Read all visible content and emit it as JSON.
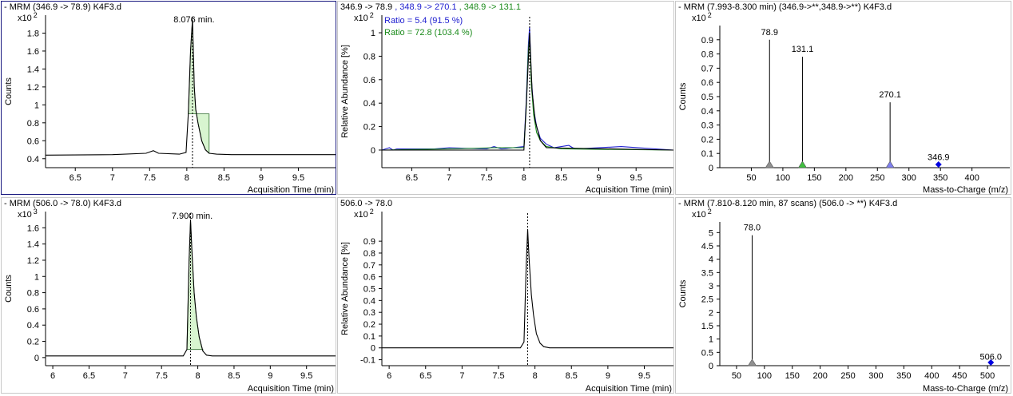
{
  "colors": {
    "blue": "#2020d0",
    "green": "#1a8a1a",
    "peak_fill": "#d8f5d0",
    "peak_edge": "#2a6a2a",
    "grey_marker": "#909090",
    "green_marker": "#40c040",
    "blue_marker": "#7f7ff0",
    "diamond": "#0000e0"
  },
  "panels": {
    "p1": {
      "title": "- MRM (346.9 -> 78.9) K4F3.d",
      "ylabel": "Counts",
      "multiplier": "x10 2",
      "xlabel": "Acquisition Time (min)",
      "peak_label": "8.076 min."
    },
    "p2": {
      "title_parts": [
        "346.9 -> 78.9",
        " , 348.9 -> 270.1",
        " , 348.9 -> 131.1"
      ],
      "ylabel": "Relative Abundance [%]",
      "multiplier": "x10 2",
      "xlabel": "Acquisition Time (min)",
      "ratio1": "Ratio = 5.4 (91.5 %)",
      "ratio2": "Ratio = 72.8 (103.4 %)"
    },
    "p3": {
      "title": "- MRM (7.993-8.300 min) (346.9->**,348.9->**) K4F3.d",
      "ylabel": "Counts",
      "multiplier": "x10 2",
      "xlabel": "Mass-to-Charge (m/z)"
    },
    "p4": {
      "title": "- MRM (506.0 -> 78.0) K4F3.d",
      "ylabel": "Counts",
      "multiplier": "x10 3",
      "xlabel": "Acquisition Time (min)",
      "peak_label": "7.900 min."
    },
    "p5": {
      "title": "506.0 -> 78.0",
      "ylabel": "Relative Abundance [%]",
      "multiplier": "x10 2",
      "xlabel": "Acquisition Time (min)"
    },
    "p6": {
      "title": "- MRM (7.810-8.120 min, 87 scans) (506.0 -> **) K4F3.d",
      "ylabel": "Counts",
      "multiplier": "x10 2",
      "xlabel": "Mass-to-Charge (m/z)"
    }
  },
  "chart_data": [
    {
      "type": "line",
      "panel": "p1",
      "xlim": [
        6.1,
        10.0
      ],
      "ylim": [
        0.3,
        2.0
      ],
      "xticks": [
        "6.5",
        "7",
        "7.5",
        "8",
        "8.5",
        "9",
        "9.5"
      ],
      "yticks": [
        "0.4",
        "0.6",
        "0.8",
        "1",
        "1.2",
        "1.4",
        "1.6",
        "1.8"
      ],
      "peak_time": 8.076,
      "integrated_range": [
        8.0,
        8.3
      ],
      "series": [
        {
          "x": [
            6.1,
            7.0,
            7.45,
            7.55,
            7.62,
            7.9,
            7.99,
            8.02,
            8.05,
            8.076,
            8.1,
            8.12,
            8.15,
            8.2,
            8.25,
            8.3,
            8.4,
            8.6,
            9.0,
            10.0
          ],
          "y": [
            0.44,
            0.445,
            0.46,
            0.49,
            0.46,
            0.45,
            0.47,
            0.9,
            1.6,
            1.95,
            1.2,
            0.95,
            0.8,
            0.6,
            0.5,
            0.46,
            0.45,
            0.445,
            0.445,
            0.445
          ]
        }
      ]
    },
    {
      "type": "line",
      "panel": "p2",
      "xlim": [
        6.1,
        10.0
      ],
      "ylim": [
        -0.15,
        1.15
      ],
      "xticks": [
        "6.5",
        "7",
        "7.5",
        "8",
        "8.5",
        "9",
        "9.5"
      ],
      "yticks": [
        "0",
        "0.2",
        "0.4",
        "0.6",
        "0.8",
        "1"
      ],
      "peak_time": 8.076,
      "series": [
        {
          "color": "blue",
          "x": [
            6.1,
            6.2,
            6.25,
            6.3,
            6.8,
            7.0,
            7.5,
            7.6,
            7.7,
            8.0,
            8.03,
            8.06,
            8.076,
            8.1,
            8.13,
            8.17,
            8.22,
            8.3,
            8.4,
            8.6,
            8.65,
            8.7,
            9.3,
            10.0
          ],
          "y": [
            0.0,
            0.02,
            0.0,
            0.01,
            0.01,
            0.02,
            0.01,
            0.03,
            0.01,
            0.03,
            0.4,
            0.9,
            1.05,
            0.6,
            0.35,
            0.2,
            0.1,
            0.05,
            0.02,
            0.04,
            0.02,
            0.01,
            0.03,
            0.0
          ]
        },
        {
          "color": "green",
          "x": [
            6.1,
            7.0,
            7.6,
            8.0,
            8.03,
            8.06,
            8.076,
            8.1,
            8.13,
            8.17,
            8.22,
            8.3,
            8.5,
            10.0
          ],
          "y": [
            0.0,
            0.01,
            0.02,
            0.02,
            0.35,
            0.85,
            0.98,
            0.55,
            0.3,
            0.15,
            0.08,
            0.03,
            0.01,
            0.0
          ]
        },
        {
          "color": "black",
          "x": [
            6.1,
            8.0,
            8.04,
            8.076,
            8.11,
            8.15,
            8.22,
            8.3,
            10.0
          ],
          "y": [
            0.0,
            0.0,
            0.5,
            1.0,
            0.5,
            0.25,
            0.08,
            0.02,
            0.0
          ]
        }
      ]
    },
    {
      "type": "bar",
      "panel": "p3",
      "xlim": [
        0,
        460
      ],
      "ylim": [
        0,
        1.0
      ],
      "xticks": [
        "50",
        "100",
        "150",
        "200",
        "250",
        "300",
        "350",
        "400"
      ],
      "yticks": [
        "0",
        "0.1",
        "0.2",
        "0.3",
        "0.4",
        "0.5",
        "0.6",
        "0.7",
        "0.8",
        "0.9"
      ],
      "peaks": [
        {
          "mz": 78.9,
          "value": 0.9,
          "label": "78.9",
          "marker": "grey"
        },
        {
          "mz": 131.1,
          "value": 0.78,
          "label": "131.1",
          "marker": "green"
        },
        {
          "mz": 270.1,
          "value": 0.46,
          "label": "270.1",
          "marker": "blue"
        },
        {
          "mz": 346.9,
          "value": 0.02,
          "label": "346.9",
          "marker": "diamond"
        }
      ]
    },
    {
      "type": "line",
      "panel": "p4",
      "xlim": [
        5.9,
        9.9
      ],
      "ylim": [
        -0.1,
        1.8
      ],
      "xticks": [
        "6",
        "6.5",
        "7",
        "7.5",
        "8",
        "8.5",
        "9",
        "9.5"
      ],
      "yticks": [
        "0",
        "0.2",
        "0.4",
        "0.6",
        "0.8",
        "1",
        "1.2",
        "1.4",
        "1.6"
      ],
      "peak_time": 7.9,
      "integrated_range": [
        7.85,
        8.1
      ],
      "series": [
        {
          "x": [
            5.9,
            7.8,
            7.85,
            7.88,
            7.9,
            7.92,
            7.95,
            7.98,
            8.02,
            8.07,
            8.12,
            8.2,
            9.9
          ],
          "y": [
            0.02,
            0.02,
            0.1,
            1.2,
            1.7,
            1.3,
            0.8,
            0.5,
            0.25,
            0.08,
            0.03,
            0.02,
            0.02
          ]
        }
      ]
    },
    {
      "type": "line",
      "panel": "p5",
      "xlim": [
        5.9,
        9.9
      ],
      "ylim": [
        -0.15,
        1.15
      ],
      "xticks": [
        "6",
        "6.5",
        "7",
        "7.5",
        "8",
        "8.5",
        "9",
        "9.5"
      ],
      "yticks": [
        "-0.1",
        "0",
        "0.1",
        "0.2",
        "0.3",
        "0.4",
        "0.5",
        "0.6",
        "0.7",
        "0.8",
        "0.9"
      ],
      "peak_time": 7.9,
      "series": [
        {
          "color": "black",
          "x": [
            5.9,
            7.8,
            7.85,
            7.88,
            7.9,
            7.92,
            7.95,
            7.98,
            8.02,
            8.07,
            8.12,
            8.2,
            9.9
          ],
          "y": [
            0.0,
            0.0,
            0.05,
            0.7,
            1.0,
            0.75,
            0.45,
            0.28,
            0.12,
            0.04,
            0.01,
            0.0,
            0.0
          ]
        }
      ]
    },
    {
      "type": "bar",
      "panel": "p6",
      "xlim": [
        20,
        540
      ],
      "ylim": [
        0,
        5.4
      ],
      "xticks": [
        "50",
        "100",
        "150",
        "200",
        "250",
        "300",
        "350",
        "400",
        "450",
        "500"
      ],
      "yticks": [
        "0",
        "0.5",
        "1",
        "1.5",
        "2",
        "2.5",
        "3",
        "3.5",
        "4",
        "4.5",
        "5"
      ],
      "peaks": [
        {
          "mz": 78.0,
          "value": 4.9,
          "label": "78.0",
          "marker": "grey"
        },
        {
          "mz": 506.0,
          "value": 0.05,
          "label": "506.0",
          "marker": "diamond"
        }
      ]
    }
  ]
}
